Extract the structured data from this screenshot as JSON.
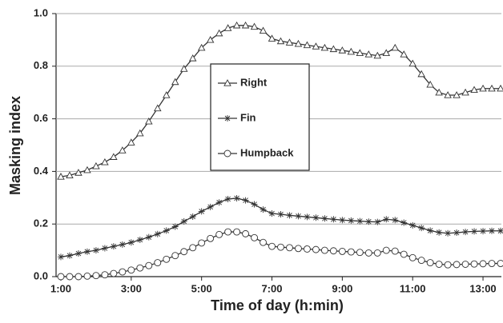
{
  "chart_data": {
    "type": "line",
    "x_label": "Time of day (h:min)",
    "y_label": "Masking index",
    "x": [
      1,
      1.25,
      1.5,
      1.75,
      2,
      2.25,
      2.5,
      2.75,
      3,
      3.25,
      3.5,
      3.75,
      4,
      4.25,
      4.5,
      4.75,
      5,
      5.25,
      5.5,
      5.75,
      6,
      6.25,
      6.5,
      6.75,
      7,
      7.25,
      7.5,
      7.75,
      8,
      8.25,
      8.5,
      8.75,
      9,
      9.25,
      9.5,
      9.75,
      10,
      10.25,
      10.5,
      10.75,
      11,
      11.25,
      11.5,
      11.75,
      12,
      12.25,
      12.5,
      12.75,
      13,
      13.25,
      13.5
    ],
    "series": [
      {
        "name": "Right",
        "color": "#333333",
        "marker": "triangle",
        "values": [
          0.38,
          0.385,
          0.395,
          0.405,
          0.42,
          0.435,
          0.455,
          0.48,
          0.51,
          0.545,
          0.59,
          0.64,
          0.69,
          0.74,
          0.79,
          0.83,
          0.87,
          0.9,
          0.925,
          0.945,
          0.955,
          0.955,
          0.95,
          0.935,
          0.905,
          0.895,
          0.89,
          0.885,
          0.88,
          0.875,
          0.87,
          0.865,
          0.86,
          0.855,
          0.85,
          0.845,
          0.84,
          0.85,
          0.87,
          0.845,
          0.81,
          0.77,
          0.73,
          0.7,
          0.69,
          0.69,
          0.7,
          0.71,
          0.715,
          0.715,
          0.715
        ]
      },
      {
        "name": "Fin",
        "color": "#333333",
        "marker": "asterisk",
        "values": [
          0.075,
          0.08,
          0.088,
          0.095,
          0.1,
          0.108,
          0.115,
          0.122,
          0.13,
          0.14,
          0.15,
          0.162,
          0.175,
          0.19,
          0.21,
          0.228,
          0.248,
          0.265,
          0.282,
          0.295,
          0.298,
          0.29,
          0.275,
          0.255,
          0.24,
          0.237,
          0.233,
          0.23,
          0.227,
          0.224,
          0.221,
          0.218,
          0.215,
          0.213,
          0.211,
          0.209,
          0.208,
          0.218,
          0.215,
          0.205,
          0.195,
          0.185,
          0.175,
          0.168,
          0.165,
          0.167,
          0.17,
          0.172,
          0.173,
          0.174,
          0.174
        ]
      },
      {
        "name": "Humpback",
        "color": "#333333",
        "marker": "circle",
        "values": [
          0,
          0,
          0,
          0.002,
          0.004,
          0.007,
          0.012,
          0.018,
          0.025,
          0.033,
          0.042,
          0.053,
          0.066,
          0.08,
          0.095,
          0.11,
          0.128,
          0.145,
          0.16,
          0.17,
          0.17,
          0.163,
          0.148,
          0.13,
          0.115,
          0.112,
          0.11,
          0.107,
          0.105,
          0.103,
          0.1,
          0.098,
          0.096,
          0.094,
          0.092,
          0.09,
          0.09,
          0.1,
          0.097,
          0.085,
          0.072,
          0.062,
          0.053,
          0.047,
          0.045,
          0.046,
          0.047,
          0.048,
          0.049,
          0.05,
          0.05
        ]
      }
    ],
    "xlim": [
      1,
      13.5
    ],
    "xticks": [
      {
        "value": 1,
        "label": "1:00"
      },
      {
        "value": 3,
        "label": "3:00"
      },
      {
        "value": 5,
        "label": "5:00"
      },
      {
        "value": 7,
        "label": "7:00"
      },
      {
        "value": 9,
        "label": "9:00"
      },
      {
        "value": 11,
        "label": "11:00"
      },
      {
        "value": 13,
        "label": "13:00"
      }
    ],
    "ylim": [
      0,
      1
    ],
    "yticks": [
      {
        "value": 0,
        "label": "0.0"
      },
      0.2,
      0.4,
      0.6,
      0.8,
      {
        "value": 1,
        "label": "1.0"
      }
    ],
    "grid": true
  }
}
